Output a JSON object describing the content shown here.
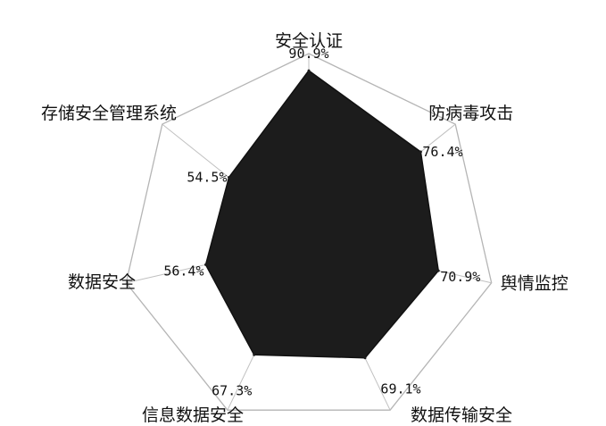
{
  "chart_data": {
    "type": "radar",
    "title": "",
    "categories": [
      "安全认证",
      "防病毒攻击",
      "舆情监控",
      "数据传输安全",
      "信息数据安全",
      "数据安全",
      "存储安全管理系统"
    ],
    "values": [
      90.9,
      76.4,
      70.9,
      69.1,
      67.3,
      56.4,
      54.5
    ],
    "value_labels": [
      "90.9%",
      "76.4%",
      "70.9%",
      "69.1%",
      "67.3%",
      "56.4%",
      "54.5%"
    ],
    "rmax": 100,
    "rings": [
      50,
      100
    ],
    "grid": true,
    "legend": "none",
    "colors": {
      "fill": "#1c1c1c",
      "grid": "#b5b5b5",
      "text": "#111111"
    }
  }
}
